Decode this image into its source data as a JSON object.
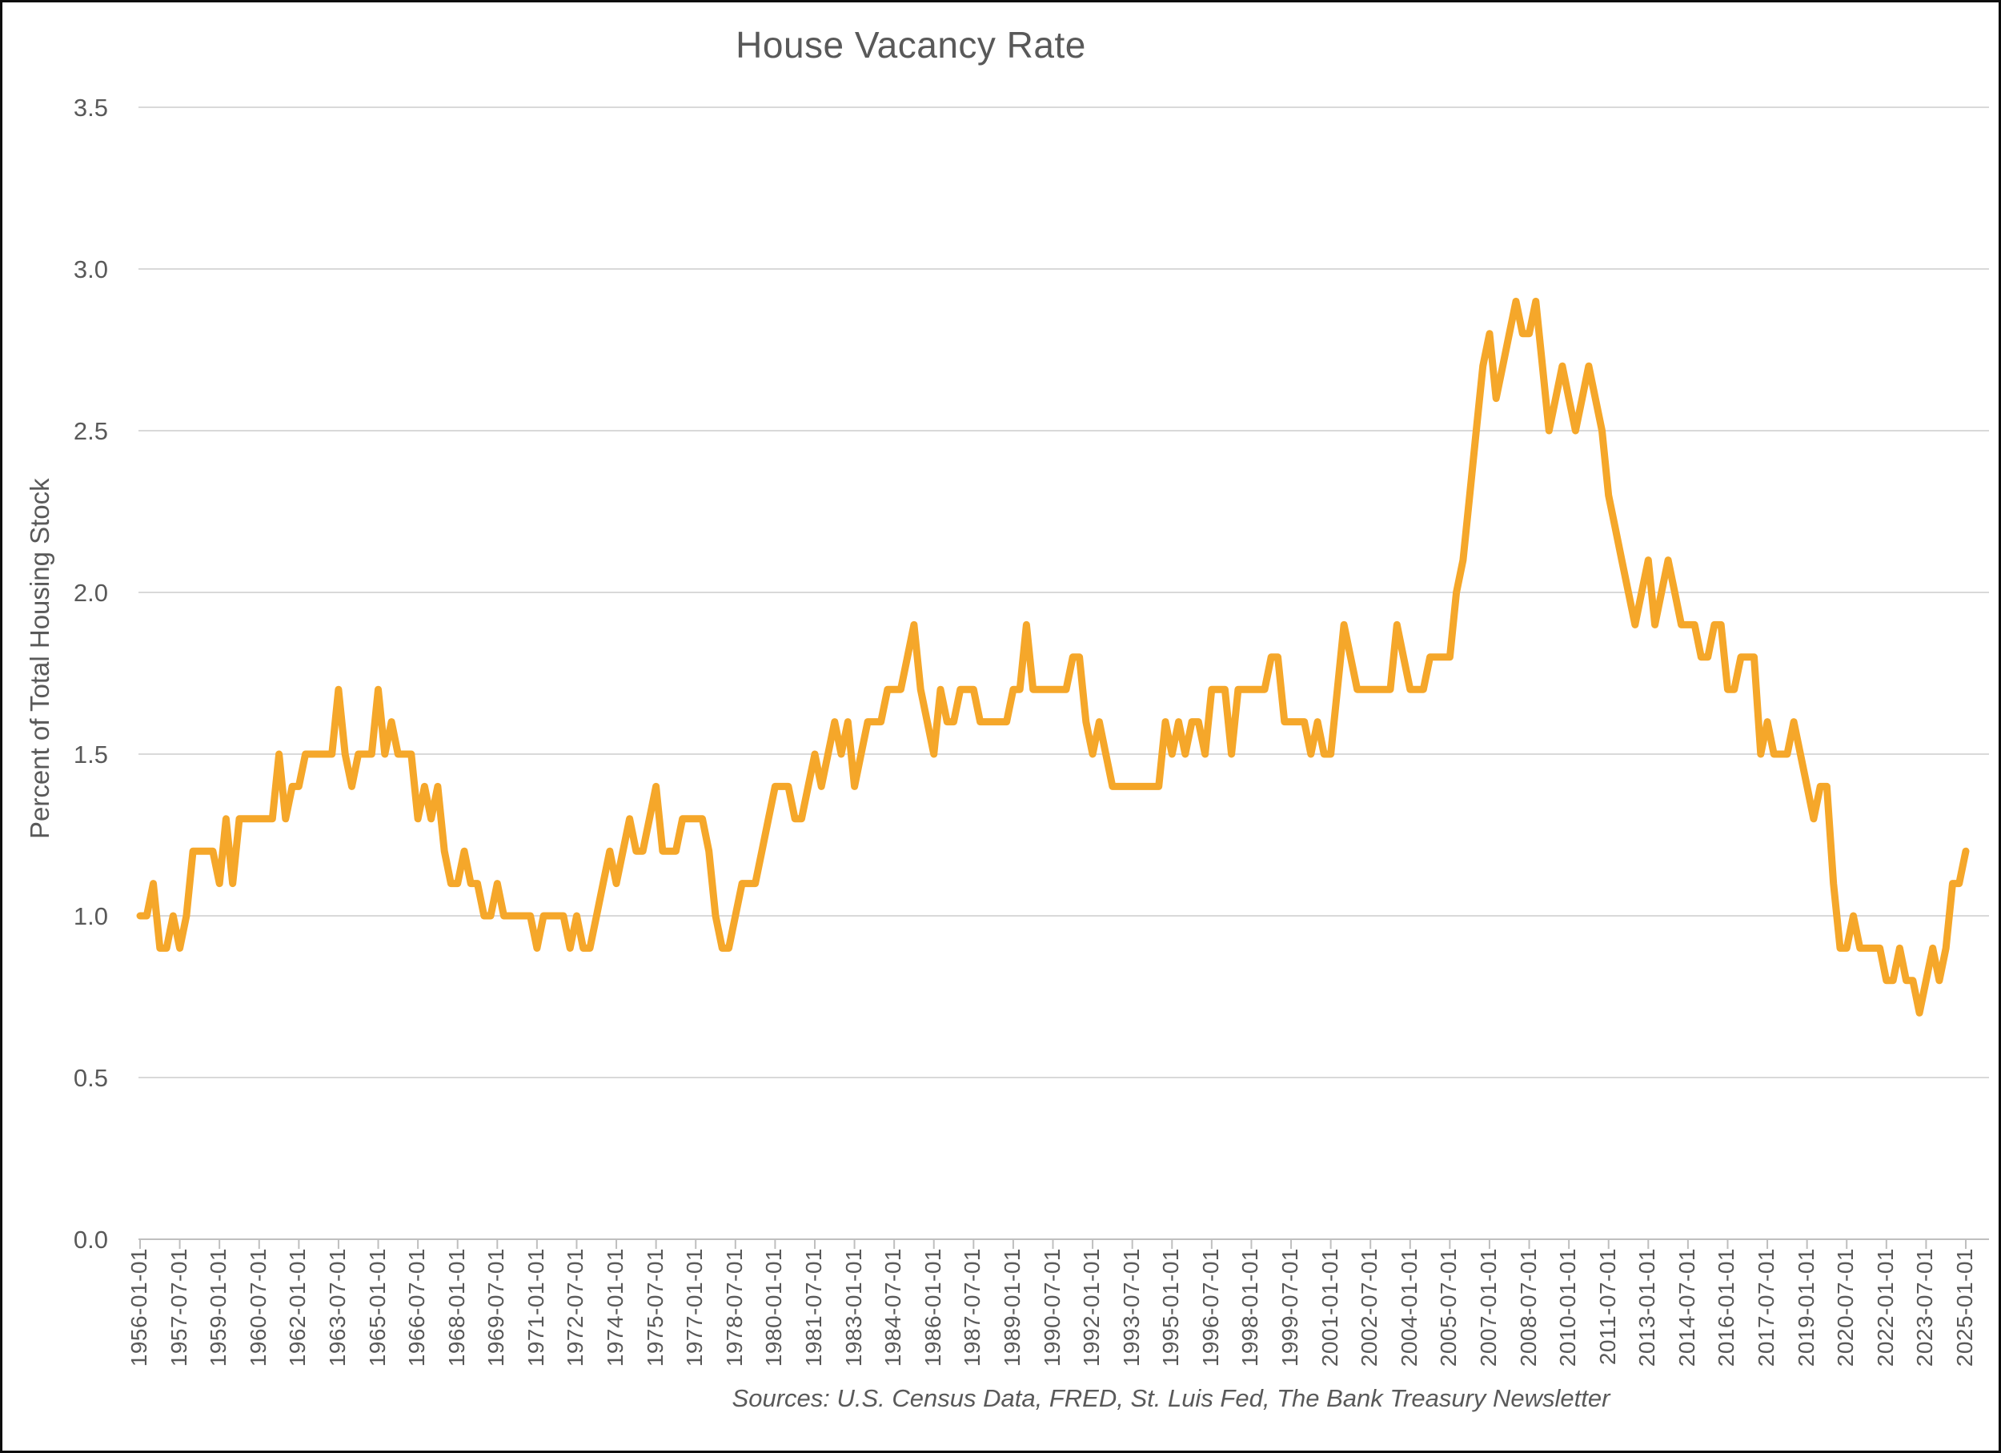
{
  "chart_data": {
    "type": "line",
    "title": "House Vacancy Rate",
    "ylabel": "Percent of  Total Housing Stock",
    "xlabel": "",
    "source_note": "Sources: U.S. Census Data, FRED, St. Luis Fed, The Bank Treasury Newsletter",
    "series_name": "House Vacancy Rate",
    "frequency": "quarterly",
    "x_start": "1956-01-01",
    "x_end": "2025-01-01",
    "ylim": [
      0.0,
      3.5
    ],
    "y_tick_step": 0.5,
    "grid": "horizontal",
    "legend": "none",
    "y_ticks": [
      "0.0",
      "0.5",
      "1.0",
      "1.5",
      "2.0",
      "2.5",
      "3.0",
      "3.5"
    ],
    "x_ticks_every_n_points": 6,
    "x_tick_labels": [
      "1956-01-01",
      "1957-07-01",
      "1959-01-01",
      "1960-07-01",
      "1962-01-01",
      "1963-07-01",
      "1965-01-01",
      "1966-07-01",
      "1968-01-01",
      "1969-07-01",
      "1971-01-01",
      "1972-07-01",
      "1974-01-01",
      "1975-07-01",
      "1977-01-01",
      "1978-07-01",
      "1980-01-01",
      "1981-07-01",
      "1983-01-01",
      "1984-07-01",
      "1986-01-01",
      "1987-07-01",
      "1989-01-01",
      "1990-07-01",
      "1992-01-01",
      "1993-07-01",
      "1995-01-01",
      "1996-07-01",
      "1998-01-01",
      "1999-07-01",
      "2001-01-01",
      "2002-07-01",
      "2004-01-01",
      "2005-07-01",
      "2007-01-01",
      "2008-07-01",
      "2010-01-01",
      "2011-07-01",
      "2013-01-01",
      "2014-07-01",
      "2016-01-01",
      "2017-07-01",
      "2019-01-01",
      "2020-07-01",
      "2022-01-01",
      "2023-07-01",
      "2025-01-01"
    ],
    "values": [
      1.0,
      1.0,
      1.1,
      0.9,
      0.9,
      1.0,
      0.9,
      1.0,
      1.2,
      1.2,
      1.2,
      1.2,
      1.1,
      1.3,
      1.1,
      1.3,
      1.3,
      1.3,
      1.3,
      1.3,
      1.3,
      1.5,
      1.3,
      1.4,
      1.4,
      1.5,
      1.5,
      1.5,
      1.5,
      1.5,
      1.7,
      1.5,
      1.4,
      1.5,
      1.5,
      1.5,
      1.7,
      1.5,
      1.6,
      1.5,
      1.5,
      1.5,
      1.3,
      1.4,
      1.3,
      1.4,
      1.2,
      1.1,
      1.1,
      1.2,
      1.1,
      1.1,
      1.0,
      1.0,
      1.1,
      1.0,
      1.0,
      1.0,
      1.0,
      1.0,
      0.9,
      1.0,
      1.0,
      1.0,
      1.0,
      0.9,
      1.0,
      0.9,
      0.9,
      1.0,
      1.1,
      1.2,
      1.1,
      1.2,
      1.3,
      1.2,
      1.2,
      1.3,
      1.4,
      1.2,
      1.2,
      1.2,
      1.3,
      1.3,
      1.3,
      1.3,
      1.2,
      1.0,
      0.9,
      0.9,
      1.0,
      1.1,
      1.1,
      1.1,
      1.2,
      1.3,
      1.4,
      1.4,
      1.4,
      1.3,
      1.3,
      1.4,
      1.5,
      1.4,
      1.5,
      1.6,
      1.5,
      1.6,
      1.4,
      1.5,
      1.6,
      1.6,
      1.6,
      1.7,
      1.7,
      1.7,
      1.8,
      1.9,
      1.7,
      1.6,
      1.5,
      1.7,
      1.6,
      1.6,
      1.7,
      1.7,
      1.7,
      1.6,
      1.6,
      1.6,
      1.6,
      1.6,
      1.7,
      1.7,
      1.9,
      1.7,
      1.7,
      1.7,
      1.7,
      1.7,
      1.7,
      1.8,
      1.8,
      1.6,
      1.5,
      1.6,
      1.5,
      1.4,
      1.4,
      1.4,
      1.4,
      1.4,
      1.4,
      1.4,
      1.4,
      1.6,
      1.5,
      1.6,
      1.5,
      1.6,
      1.6,
      1.5,
      1.7,
      1.7,
      1.7,
      1.5,
      1.7,
      1.7,
      1.7,
      1.7,
      1.7,
      1.8,
      1.8,
      1.6,
      1.6,
      1.6,
      1.6,
      1.5,
      1.6,
      1.5,
      1.5,
      1.7,
      1.9,
      1.8,
      1.7,
      1.7,
      1.7,
      1.7,
      1.7,
      1.7,
      1.9,
      1.8,
      1.7,
      1.7,
      1.7,
      1.8,
      1.8,
      1.8,
      1.8,
      2.0,
      2.1,
      2.3,
      2.5,
      2.7,
      2.8,
      2.6,
      2.7,
      2.8,
      2.9,
      2.8,
      2.8,
      2.9,
      2.7,
      2.5,
      2.6,
      2.7,
      2.6,
      2.5,
      2.6,
      2.7,
      2.6,
      2.5,
      2.3,
      2.2,
      2.1,
      2.0,
      1.9,
      2.0,
      2.1,
      1.9,
      2.0,
      2.1,
      2.0,
      1.9,
      1.9,
      1.9,
      1.8,
      1.8,
      1.9,
      1.9,
      1.7,
      1.7,
      1.8,
      1.8,
      1.8,
      1.5,
      1.6,
      1.5,
      1.5,
      1.5,
      1.6,
      1.5,
      1.4,
      1.3,
      1.4,
      1.4,
      1.1,
      0.9,
      0.9,
      1.0,
      0.9,
      0.9,
      0.9,
      0.9,
      0.8,
      0.8,
      0.9,
      0.8,
      0.8,
      0.7,
      0.8,
      0.9,
      0.8,
      0.9,
      1.1,
      1.1,
      1.2
    ],
    "colors": {
      "line": "#F5A72A",
      "grid": "#D9D9D9",
      "axis": "#BFBFBF",
      "text": "#595959",
      "background": "#FFFFFF",
      "frame_border": "#0D0D0D"
    }
  }
}
